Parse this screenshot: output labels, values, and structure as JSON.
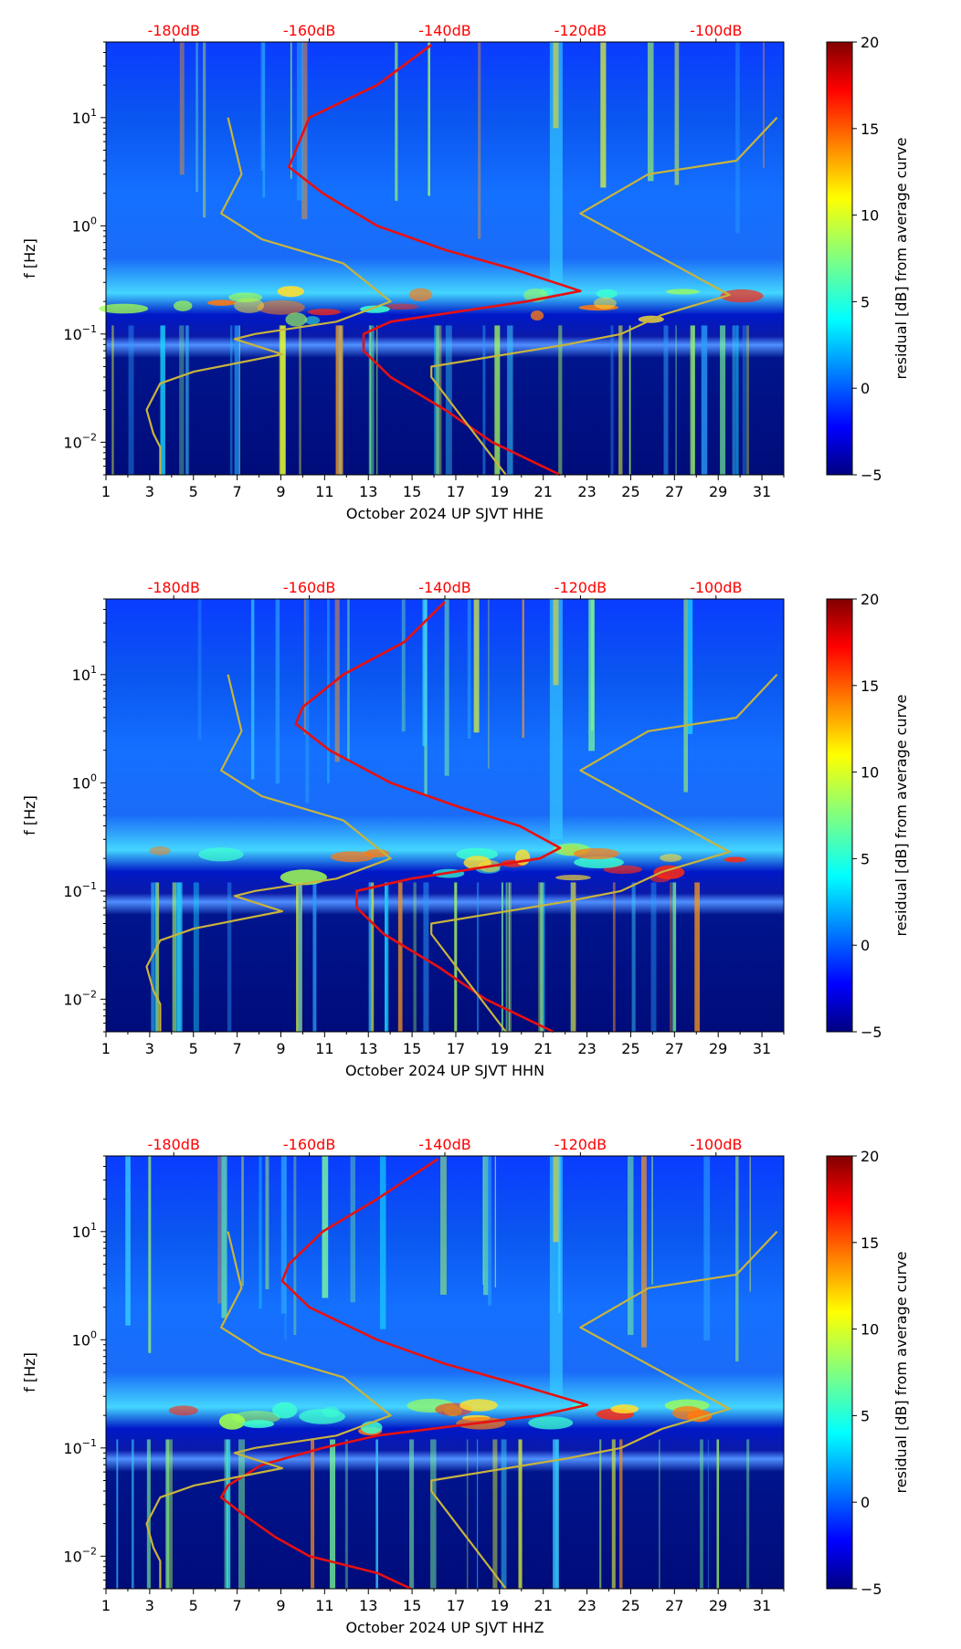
{
  "figure_title": "",
  "chart_data": [
    {
      "type": "heatmap",
      "title": "",
      "xlabel": "October 2024 UP SJVT  HHE",
      "ylabel": "f [Hz]",
      "xlim": [
        1,
        32
      ],
      "ylim": [
        0.005,
        50
      ],
      "xticks": [
        "1",
        "3",
        "5",
        "7",
        "9",
        "11",
        "13",
        "15",
        "17",
        "19",
        "21",
        "23",
        "25",
        "27",
        "29",
        "31"
      ],
      "yticks": [
        {
          "value": 0.01,
          "base": "10",
          "exp": "−2"
        },
        {
          "value": 0.1,
          "base": "10",
          "exp": "−1"
        },
        {
          "value": 1,
          "base": "10",
          "exp": "0"
        },
        {
          "value": 10,
          "base": "10",
          "exp": "1"
        }
      ],
      "top_axis": {
        "label_color": "#ff0000",
        "ticks": [
          "-180dB",
          "-160dB",
          "-140dB",
          "-120dB",
          "-100dB"
        ]
      },
      "colorbar": {
        "label": "residual [dB] from average curve",
        "min": -5,
        "max": 20,
        "ticks": [
          "−5",
          "0",
          "5",
          "10",
          "15",
          "20"
        ]
      },
      "series": [
        {
          "name": "average PSD",
          "color": "#e81010",
          "points": [
            [
              47,
              -142
            ],
            [
              20,
              -150
            ],
            [
              10,
              -160
            ],
            [
              5,
              -162
            ],
            [
              3.5,
              -163
            ],
            [
              2,
              -158
            ],
            [
              1,
              -150
            ],
            [
              0.6,
              -140
            ],
            [
              0.4,
              -130
            ],
            [
              0.25,
              -120
            ],
            [
              0.2,
              -128
            ],
            [
              0.13,
              -148
            ],
            [
              0.1,
              -152
            ],
            [
              0.07,
              -152
            ],
            [
              0.04,
              -148
            ],
            [
              0.02,
              -140
            ],
            [
              0.01,
              -133
            ],
            [
              0.005,
              -123
            ]
          ]
        },
        {
          "name": "noise model bound",
          "color": "#c8b43c",
          "points": [
            [
              10,
              -172
            ],
            [
              3,
              -170
            ],
            [
              1.3,
              -173
            ],
            [
              0.75,
              -167
            ],
            [
              0.45,
              -155
            ],
            [
              0.2,
              -148
            ],
            [
              0.13,
              -156
            ],
            [
              0.1,
              -168
            ],
            [
              0.09,
              -171
            ],
            [
              0.065,
              -164
            ],
            [
              0.045,
              -177
            ],
            [
              0.035,
              -182
            ],
            [
              0.02,
              -184
            ],
            [
              0.012,
              -183
            ],
            [
              0.009,
              -182
            ],
            [
              0.005,
              -182
            ]
          ]
        },
        {
          "name": "noise model bound",
          "color": "#c8b43c",
          "points": [
            [
              10,
              -91
            ],
            [
              4,
              -97
            ],
            [
              3,
              -110
            ],
            [
              1.3,
              -120
            ],
            [
              0.23,
              -98
            ],
            [
              0.15,
              -108
            ],
            [
              0.1,
              -114
            ],
            [
              0.08,
              -122
            ],
            [
              0.05,
              -142
            ],
            [
              0.04,
              -142
            ],
            [
              0.005,
              -131
            ]
          ]
        }
      ]
    },
    {
      "type": "heatmap",
      "title": "",
      "xlabel": "October 2024 UP SJVT  HHN",
      "ylabel": "f [Hz]",
      "xlim": [
        1,
        32
      ],
      "ylim": [
        0.005,
        50
      ],
      "xticks": [
        "1",
        "3",
        "5",
        "7",
        "9",
        "11",
        "13",
        "15",
        "17",
        "19",
        "21",
        "23",
        "25",
        "27",
        "29",
        "31"
      ],
      "yticks": [
        {
          "value": 0.01,
          "base": "10",
          "exp": "−2"
        },
        {
          "value": 0.1,
          "base": "10",
          "exp": "−1"
        },
        {
          "value": 1,
          "base": "10",
          "exp": "0"
        },
        {
          "value": 10,
          "base": "10",
          "exp": "1"
        }
      ],
      "top_axis": {
        "label_color": "#ff0000",
        "ticks": [
          "-180dB",
          "-160dB",
          "-140dB",
          "-120dB",
          "-100dB"
        ]
      },
      "colorbar": {
        "label": "residual [dB] from average curve",
        "min": -5,
        "max": 20,
        "ticks": [
          "−5",
          "0",
          "5",
          "10",
          "15",
          "20"
        ]
      },
      "series": [
        {
          "name": "average PSD",
          "color": "#e81010",
          "points": [
            [
              47,
              -140
            ],
            [
              20,
              -146
            ],
            [
              10,
              -155
            ],
            [
              5,
              -161
            ],
            [
              3.5,
              -162
            ],
            [
              2,
              -157
            ],
            [
              1,
              -148
            ],
            [
              0.6,
              -138
            ],
            [
              0.4,
              -129
            ],
            [
              0.25,
              -123
            ],
            [
              0.2,
              -126
            ],
            [
              0.13,
              -145
            ],
            [
              0.1,
              -153
            ],
            [
              0.07,
              -153
            ],
            [
              0.04,
              -149
            ],
            [
              0.02,
              -141
            ],
            [
              0.01,
              -134
            ],
            [
              0.005,
              -124
            ]
          ]
        },
        {
          "name": "noise model bound",
          "color": "#c8b43c",
          "points": [
            [
              10,
              -172
            ],
            [
              3,
              -170
            ],
            [
              1.3,
              -173
            ],
            [
              0.75,
              -167
            ],
            [
              0.45,
              -155
            ],
            [
              0.2,
              -148
            ],
            [
              0.13,
              -156
            ],
            [
              0.1,
              -168
            ],
            [
              0.09,
              -171
            ],
            [
              0.065,
              -164
            ],
            [
              0.045,
              -177
            ],
            [
              0.035,
              -182
            ],
            [
              0.02,
              -184
            ],
            [
              0.012,
              -183
            ],
            [
              0.009,
              -182
            ],
            [
              0.005,
              -182
            ]
          ]
        },
        {
          "name": "noise model bound",
          "color": "#c8b43c",
          "points": [
            [
              10,
              -91
            ],
            [
              4,
              -97
            ],
            [
              3,
              -110
            ],
            [
              1.3,
              -120
            ],
            [
              0.23,
              -98
            ],
            [
              0.15,
              -108
            ],
            [
              0.1,
              -114
            ],
            [
              0.08,
              -122
            ],
            [
              0.05,
              -142
            ],
            [
              0.04,
              -142
            ],
            [
              0.005,
              -131
            ]
          ]
        }
      ]
    },
    {
      "type": "heatmap",
      "title": "",
      "xlabel": "October 2024 UP SJVT  HHZ",
      "ylabel": "f [Hz]",
      "xlim": [
        1,
        32
      ],
      "ylim": [
        0.005,
        50
      ],
      "xticks": [
        "1",
        "3",
        "5",
        "7",
        "9",
        "11",
        "13",
        "15",
        "17",
        "19",
        "21",
        "23",
        "25",
        "27",
        "29",
        "31"
      ],
      "yticks": [
        {
          "value": 0.01,
          "base": "10",
          "exp": "−2"
        },
        {
          "value": 0.1,
          "base": "10",
          "exp": "−1"
        },
        {
          "value": 1,
          "base": "10",
          "exp": "0"
        },
        {
          "value": 10,
          "base": "10",
          "exp": "1"
        }
      ],
      "top_axis": {
        "label_color": "#ff0000",
        "ticks": [
          "-180dB",
          "-160dB",
          "-140dB",
          "-120dB",
          "-100dB"
        ]
      },
      "colorbar": {
        "label": "residual [dB] from average curve",
        "min": -5,
        "max": 20,
        "ticks": [
          "−5",
          "0",
          "5",
          "10",
          "15",
          "20"
        ]
      },
      "series": [
        {
          "name": "average PSD",
          "color": "#e81010",
          "points": [
            [
              47,
              -141
            ],
            [
              20,
              -150
            ],
            [
              10,
              -158
            ],
            [
              5,
              -163
            ],
            [
              3.5,
              -164
            ],
            [
              2,
              -160
            ],
            [
              1,
              -150
            ],
            [
              0.6,
              -140
            ],
            [
              0.4,
              -130
            ],
            [
              0.25,
              -119
            ],
            [
              0.2,
              -126
            ],
            [
              0.13,
              -150
            ],
            [
              0.1,
              -158
            ],
            [
              0.07,
              -167
            ],
            [
              0.045,
              -172
            ],
            [
              0.035,
              -173
            ],
            [
              0.025,
              -170
            ],
            [
              0.015,
              -165
            ],
            [
              0.01,
              -160
            ],
            [
              0.007,
              -150
            ],
            [
              0.005,
              -145
            ]
          ]
        },
        {
          "name": "noise model bound",
          "color": "#c8b43c",
          "points": [
            [
              10,
              -172
            ],
            [
              3,
              -170
            ],
            [
              1.3,
              -173
            ],
            [
              0.75,
              -167
            ],
            [
              0.45,
              -155
            ],
            [
              0.2,
              -148
            ],
            [
              0.13,
              -156
            ],
            [
              0.1,
              -168
            ],
            [
              0.09,
              -171
            ],
            [
              0.065,
              -164
            ],
            [
              0.045,
              -177
            ],
            [
              0.035,
              -182
            ],
            [
              0.02,
              -184
            ],
            [
              0.012,
              -183
            ],
            [
              0.009,
              -182
            ],
            [
              0.005,
              -182
            ]
          ]
        },
        {
          "name": "noise model bound",
          "color": "#c8b43c",
          "points": [
            [
              10,
              -91
            ],
            [
              4,
              -97
            ],
            [
              3,
              -110
            ],
            [
              1.3,
              -120
            ],
            [
              0.23,
              -98
            ],
            [
              0.15,
              -108
            ],
            [
              0.1,
              -114
            ],
            [
              0.08,
              -122
            ],
            [
              0.05,
              -142
            ],
            [
              0.04,
              -142
            ],
            [
              0.005,
              -131
            ]
          ]
        }
      ]
    }
  ],
  "colors": {
    "jet_low": "#000080",
    "jet_high": "#800000",
    "top_axis_label": "#ff0000",
    "psd_line": "#e81010",
    "model_line": "#c8b43c"
  }
}
